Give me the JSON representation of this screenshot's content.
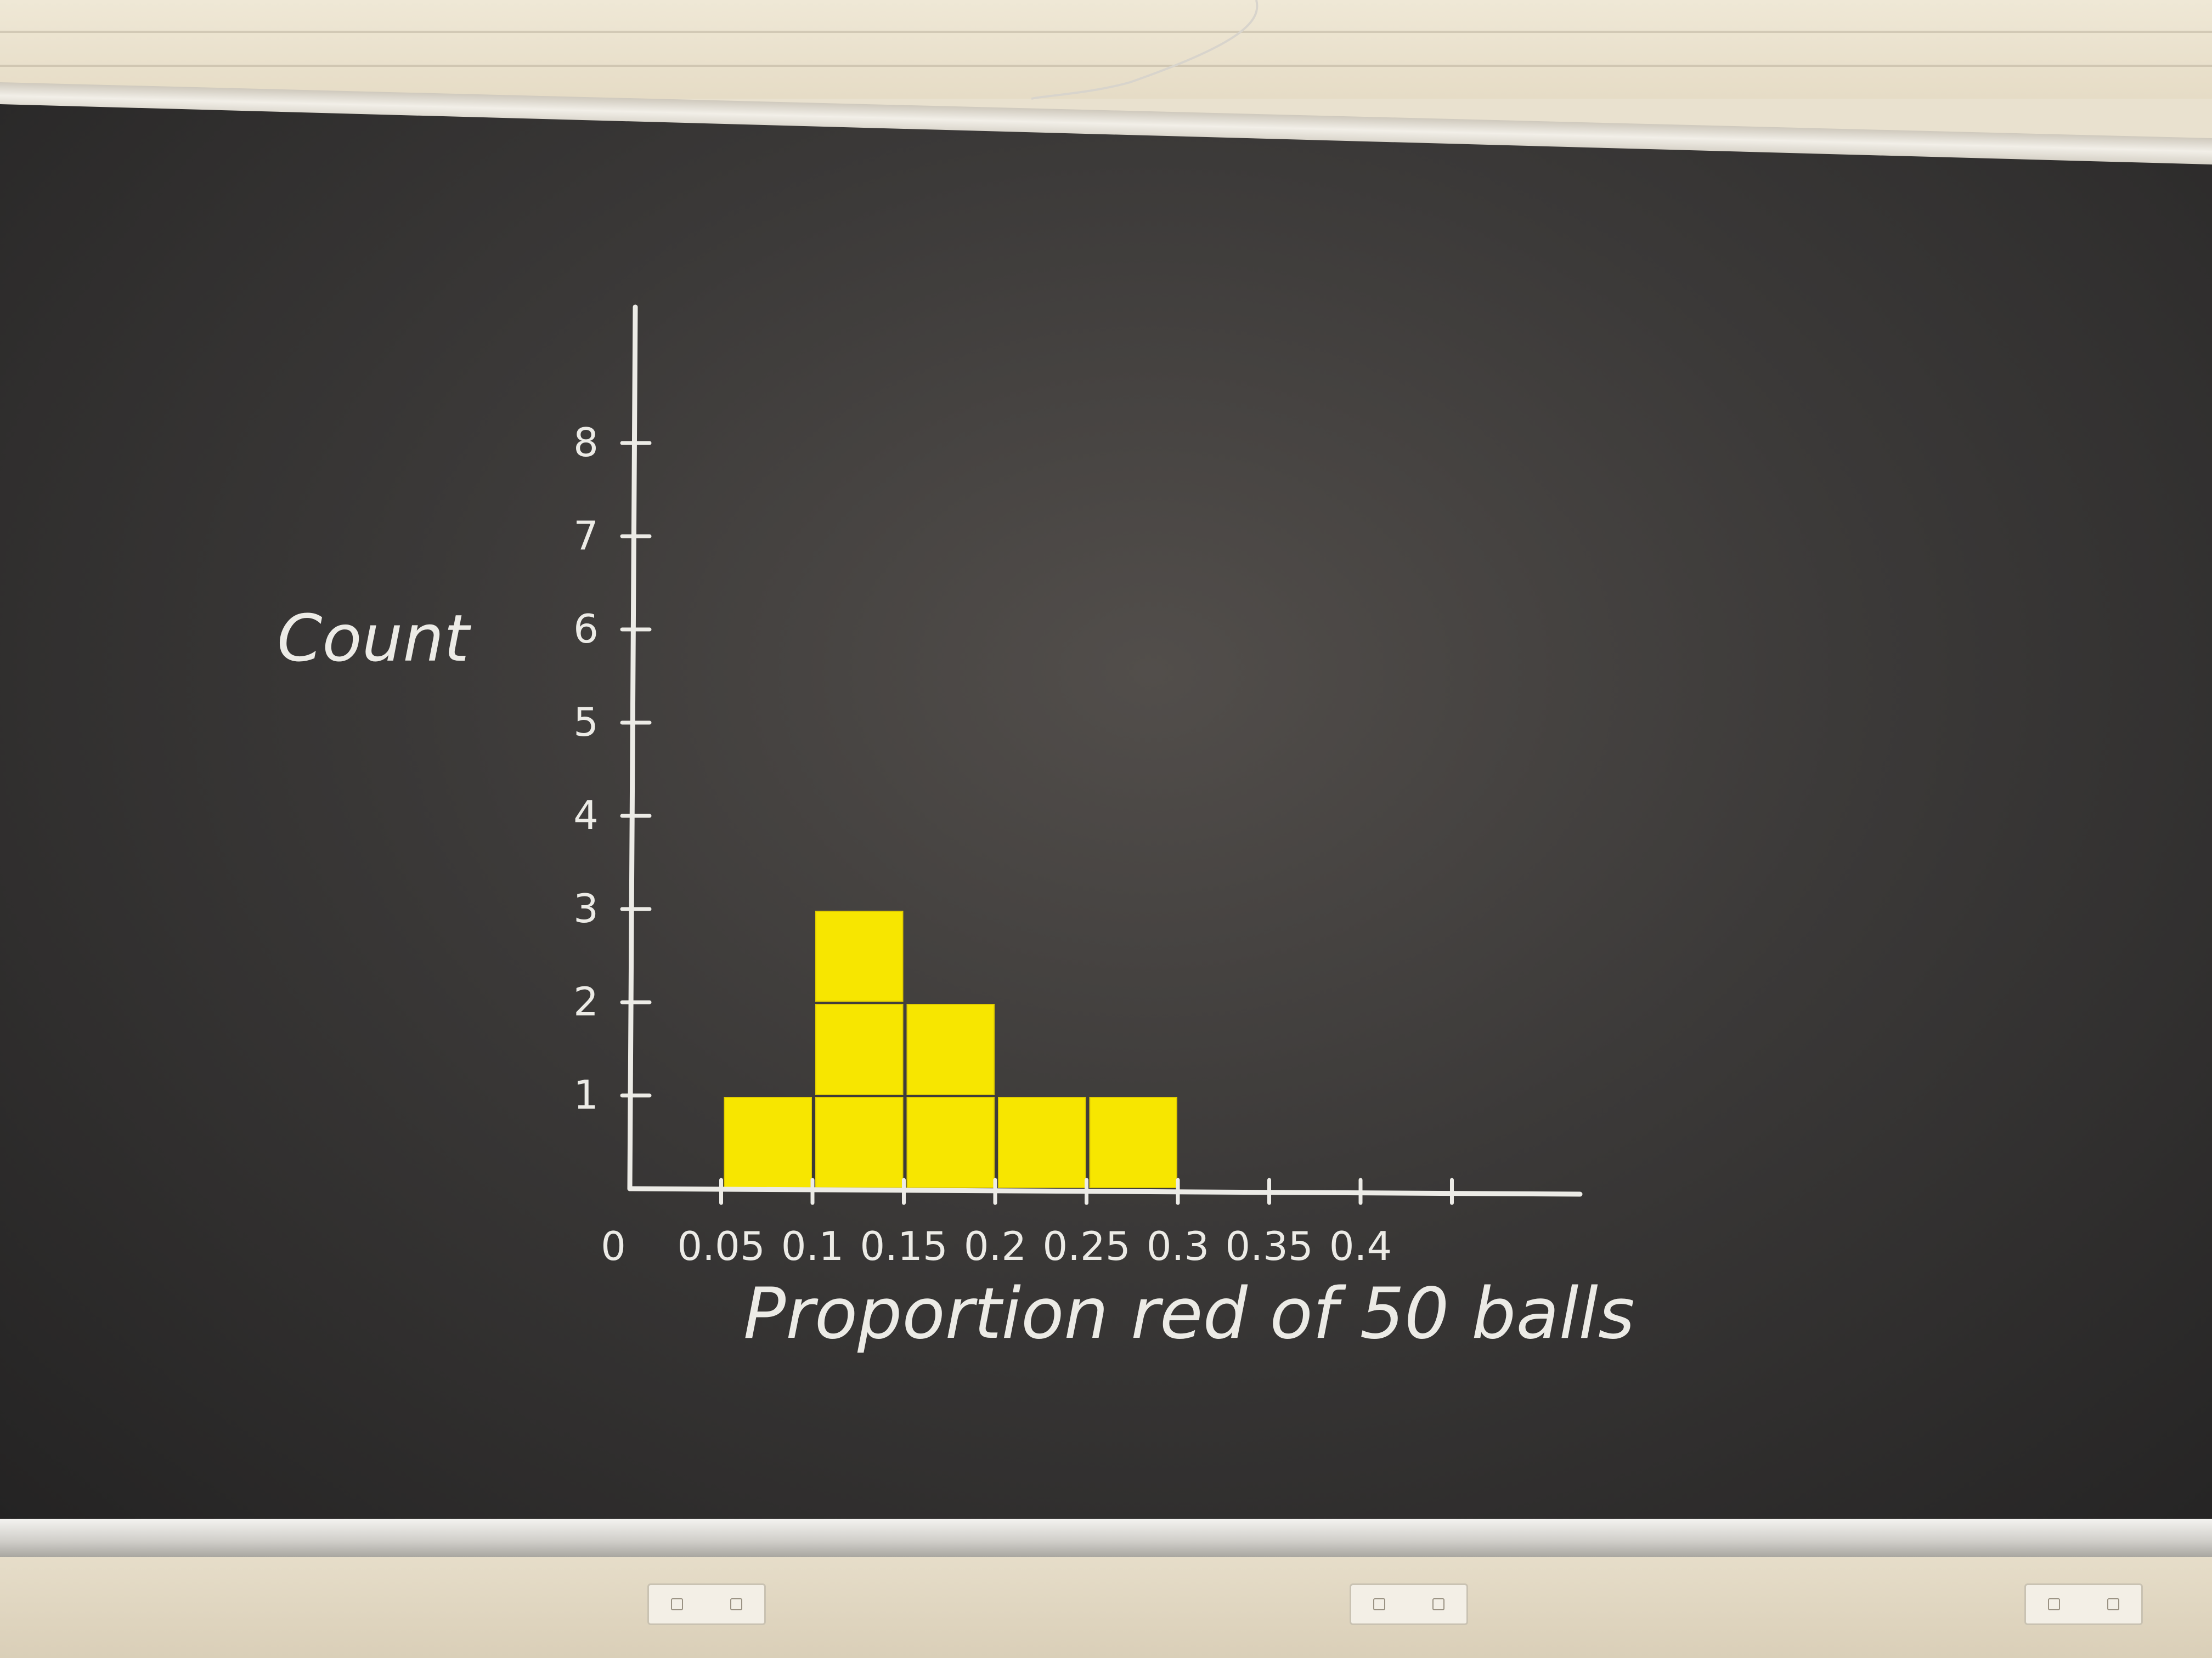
{
  "chart_data": {
    "type": "bar",
    "title": "",
    "xlabel": "Proportion red of 50 balls",
    "ylabel": "Count",
    "x_tick_labels": [
      "0",
      "0.05",
      "0.1",
      "0.15",
      "0.2",
      "0.25",
      "0.3",
      "0.35",
      "0.4"
    ],
    "y_tick_labels": [
      "1",
      "2",
      "3",
      "4",
      "5",
      "6",
      "7",
      "8"
    ],
    "xlim": [
      0,
      0.45
    ],
    "ylim": [
      0,
      9
    ],
    "bin_width": 0.05,
    "bins": [
      {
        "x0": 0.05,
        "x1": 0.1,
        "count": 1
      },
      {
        "x0": 0.1,
        "x1": 0.15,
        "count": 3
      },
      {
        "x0": 0.15,
        "x1": 0.2,
        "count": 2
      },
      {
        "x0": 0.2,
        "x1": 0.25,
        "count": 1
      },
      {
        "x0": 0.25,
        "x1": 0.3,
        "count": 1
      }
    ],
    "grid": false,
    "legend": "none",
    "bar_color": "#f7e600",
    "axis_color": "#ecebe6",
    "background_color": "#3b3938"
  }
}
